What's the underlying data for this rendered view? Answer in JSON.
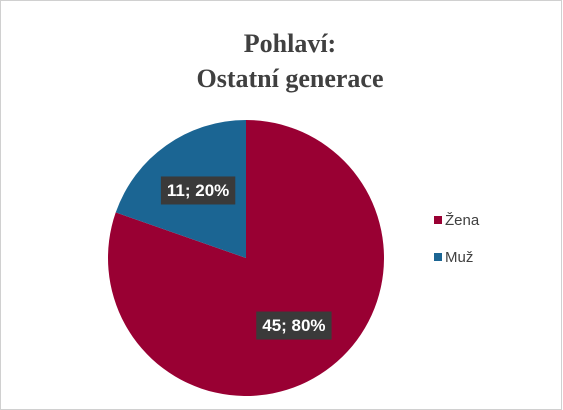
{
  "chart_data": {
    "type": "pie",
    "title": [
      "Pohlaví:",
      "Ostatní generace"
    ],
    "categories": [
      "Žena",
      "Muž"
    ],
    "values": [
      45,
      11
    ],
    "value_labels": [
      "45; 80%",
      "11; 20%"
    ],
    "colors": [
      "#990033",
      "#1b6593"
    ],
    "legend": "right"
  }
}
